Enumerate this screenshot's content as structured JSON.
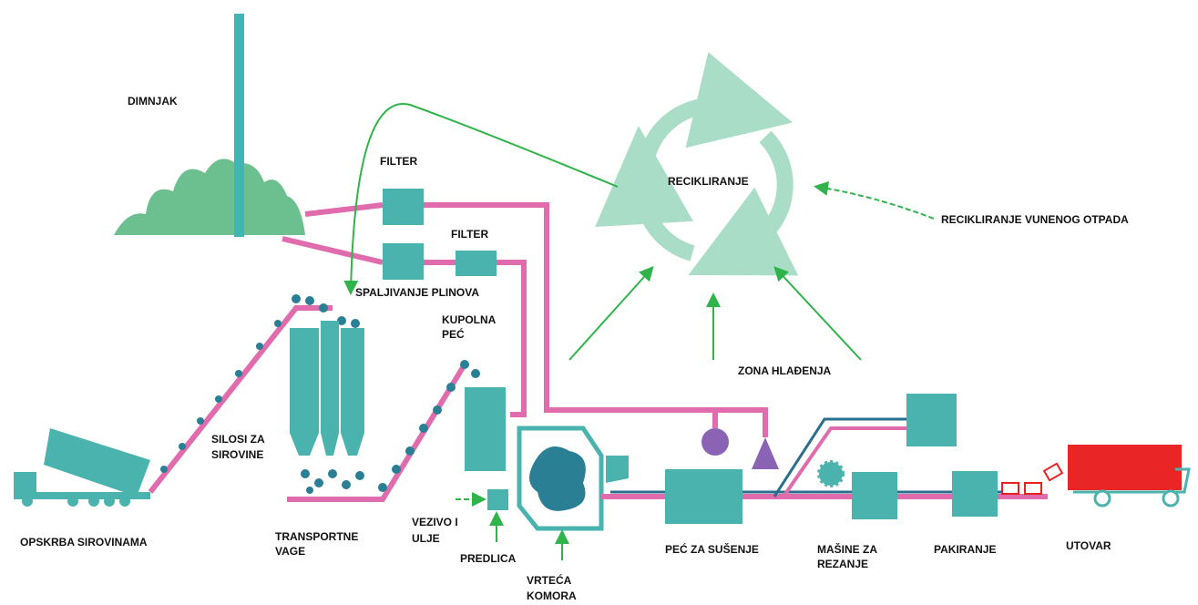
{
  "labels": {
    "dimnjak": "DIMNJAK",
    "filter_1": "FILTER",
    "filter_2": "FILTER",
    "recikliranje": "RECIKLIRANJE",
    "recikliranje_otpada": "RECIKLIRANJE VUNENOG OTPADA",
    "spaljivanje": "SPALJIVANJE PLINOVA",
    "kupolna": [
      "KUPOLNA",
      "PEĆ"
    ],
    "silosi": [
      "SILOSI ZA",
      "SIROVINE"
    ],
    "zona": "ZONA HLAĐENJA",
    "opskrba": "OPSKRBA SIROVINAMA",
    "vage": [
      "TRANSPORTNE",
      "VAGE"
    ],
    "vezivo": [
      "VEZIVO I",
      "ULJE"
    ],
    "predlica": "PREDLICA",
    "komora": [
      "VRTEĆA",
      "KOMORA"
    ],
    "pec_susenje": "PEĆ ZA SUŠENJE",
    "masine": [
      "MAŠINE ZA",
      "REZANJE"
    ],
    "pakiranje": "PAKIRANJE",
    "utovar": "UTOVAR"
  }
}
